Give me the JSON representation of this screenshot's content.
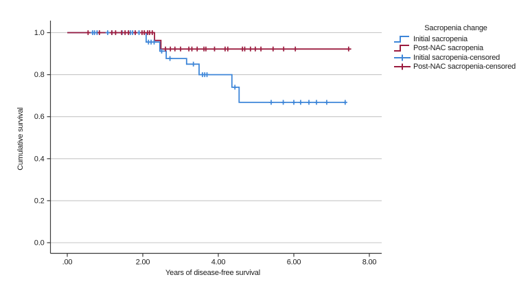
{
  "chart_data": {
    "type": "line",
    "subtype": "kaplan-meier-step-plot",
    "title": "",
    "xlabel": "Years of disease-free survival",
    "ylabel": "Cumulative survival",
    "xticks": {
      "values": [
        0,
        2,
        4,
        6,
        8
      ],
      "labels": [
        ".00",
        "2.00",
        "4.00",
        "6.00",
        "8.00"
      ]
    },
    "yticks": {
      "values": [
        0.0,
        0.2,
        0.4,
        0.6,
        0.8,
        1.0
      ],
      "labels": [
        "0.0",
        "0.2",
        "0.4",
        "0.6",
        "0.8",
        "1.0"
      ]
    },
    "xlim": [
      -0.45,
      8.35
    ],
    "ylim": [
      -0.05,
      1.06
    ],
    "grid": "horizontal-gray",
    "legend": {
      "title": "Sacropenia change",
      "position": "right"
    },
    "colors": {
      "initial": "#3E86D8",
      "postnac": "#9B1B3E",
      "grid": "#c6c6c6",
      "axis": "#3a3a3a"
    },
    "series": [
      {
        "name": "Initial sacropenia",
        "type": "step",
        "color_key": "initial",
        "points": [
          [
            0,
            1.0
          ],
          [
            2.09,
            1.0
          ],
          [
            2.09,
            0.955
          ],
          [
            2.45,
            0.955
          ],
          [
            2.45,
            0.912
          ],
          [
            2.62,
            0.912
          ],
          [
            2.62,
            0.877
          ],
          [
            3.16,
            0.877
          ],
          [
            3.16,
            0.85
          ],
          [
            3.49,
            0.85
          ],
          [
            3.49,
            0.8
          ],
          [
            4.36,
            0.8
          ],
          [
            4.36,
            0.74
          ],
          [
            4.55,
            0.74
          ],
          [
            4.55,
            0.668
          ],
          [
            7.37,
            0.668
          ]
        ]
      },
      {
        "name": "Post-NAC sacropenia",
        "type": "step",
        "color_key": "postnac",
        "points": [
          [
            0,
            1.0
          ],
          [
            2.31,
            1.0
          ],
          [
            2.31,
            0.963
          ],
          [
            2.48,
            0.963
          ],
          [
            2.48,
            0.922
          ],
          [
            7.52,
            0.922
          ]
        ]
      },
      {
        "name": "Initial sacropenia-censored",
        "type": "censor",
        "color_key": "initial",
        "points": [
          [
            0.67,
            1.0
          ],
          [
            0.72,
            1.0
          ],
          [
            0.79,
            1.0
          ],
          [
            1.07,
            1.0
          ],
          [
            1.18,
            1.0
          ],
          [
            1.45,
            1.0
          ],
          [
            1.67,
            1.0
          ],
          [
            1.73,
            1.0
          ],
          [
            1.9,
            1.0
          ],
          [
            2.15,
            0.955
          ],
          [
            2.22,
            0.955
          ],
          [
            2.3,
            0.955
          ],
          [
            2.5,
            0.912
          ],
          [
            2.72,
            0.877
          ],
          [
            3.34,
            0.85
          ],
          [
            3.58,
            0.8
          ],
          [
            3.64,
            0.8
          ],
          [
            3.7,
            0.8
          ],
          [
            4.44,
            0.74
          ],
          [
            5.4,
            0.668
          ],
          [
            5.72,
            0.668
          ],
          [
            6.0,
            0.668
          ],
          [
            6.18,
            0.668
          ],
          [
            6.4,
            0.668
          ],
          [
            6.6,
            0.668
          ],
          [
            6.87,
            0.668
          ],
          [
            7.36,
            0.668
          ]
        ]
      },
      {
        "name": "Post-NAC sacropenia-censored",
        "type": "censor",
        "color_key": "postnac",
        "points": [
          [
            0.55,
            1.0
          ],
          [
            0.85,
            1.0
          ],
          [
            1.18,
            1.0
          ],
          [
            1.28,
            1.0
          ],
          [
            1.44,
            1.0
          ],
          [
            1.53,
            1.0
          ],
          [
            1.62,
            1.0
          ],
          [
            1.8,
            1.0
          ],
          [
            1.98,
            1.0
          ],
          [
            2.04,
            1.0
          ],
          [
            2.13,
            1.0
          ],
          [
            2.18,
            1.0
          ],
          [
            2.25,
            1.0
          ],
          [
            2.6,
            0.922
          ],
          [
            2.73,
            0.922
          ],
          [
            2.85,
            0.922
          ],
          [
            3.0,
            0.922
          ],
          [
            3.22,
            0.922
          ],
          [
            3.3,
            0.922
          ],
          [
            3.44,
            0.922
          ],
          [
            3.62,
            0.922
          ],
          [
            3.67,
            0.922
          ],
          [
            3.9,
            0.922
          ],
          [
            4.18,
            0.922
          ],
          [
            4.25,
            0.922
          ],
          [
            4.64,
            0.922
          ],
          [
            4.7,
            0.922
          ],
          [
            4.85,
            0.922
          ],
          [
            4.98,
            0.922
          ],
          [
            5.13,
            0.922
          ],
          [
            5.45,
            0.922
          ],
          [
            5.73,
            0.922
          ],
          [
            6.04,
            0.922
          ],
          [
            7.45,
            0.922
          ]
        ]
      }
    ]
  }
}
